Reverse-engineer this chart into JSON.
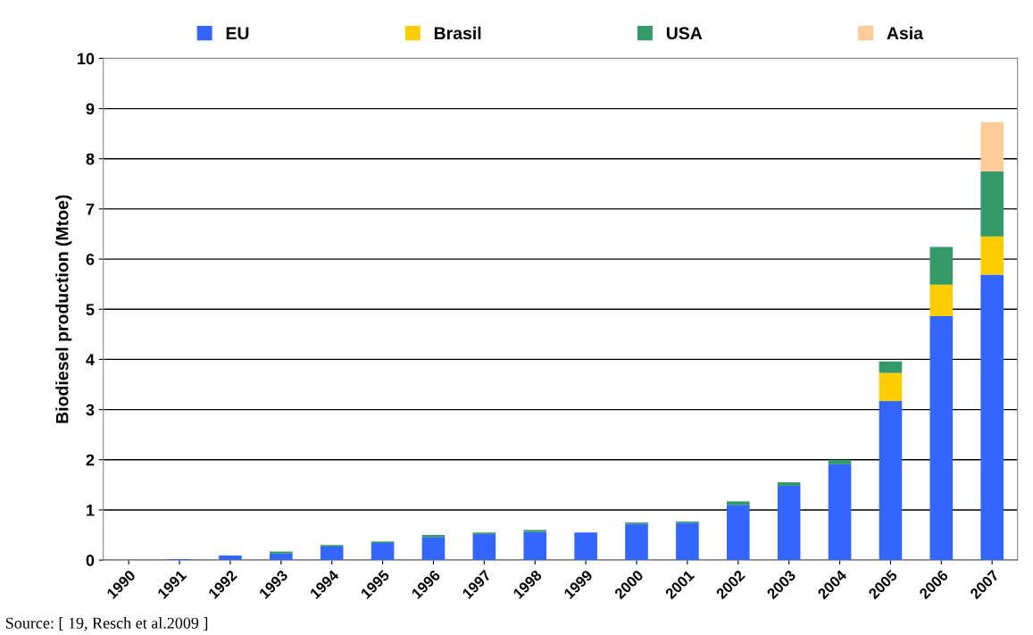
{
  "chart_data": {
    "type": "bar",
    "stacked": true,
    "ylabel": "Biodiesel production (Mtoe)",
    "categories": [
      "1990",
      "1991",
      "1992",
      "1993",
      "1994",
      "1995",
      "1996",
      "1997",
      "1998",
      "1999",
      "2000",
      "2001",
      "2002",
      "2003",
      "2004",
      "2005",
      "2006",
      "2007"
    ],
    "series": [
      {
        "name": "EU",
        "color": "#3366ff",
        "values": [
          0,
          0.02,
          0.09,
          0.13,
          0.27,
          0.34,
          0.46,
          0.52,
          0.56,
          0.55,
          0.72,
          0.74,
          1.1,
          1.48,
          1.91,
          3.17,
          4.86,
          5.69
        ]
      },
      {
        "name": "Brasil",
        "color": "#ffcc00",
        "values": [
          0,
          0,
          0,
          0,
          0,
          0,
          0,
          0,
          0,
          0,
          0,
          0,
          0,
          0,
          0,
          0.56,
          0.63,
          0.76
        ]
      },
      {
        "name": "USA",
        "color": "#339966",
        "values": [
          0,
          0,
          0,
          0.04,
          0.03,
          0.03,
          0.04,
          0.03,
          0.04,
          0,
          0.03,
          0.03,
          0.07,
          0.07,
          0.09,
          0.23,
          0.75,
          1.3
        ]
      },
      {
        "name": "Asia",
        "color": "#ffcc99",
        "values": [
          0,
          0,
          0,
          0,
          0,
          0,
          0,
          0,
          0,
          0,
          0,
          0,
          0,
          0,
          0,
          0,
          0,
          0.98
        ]
      }
    ],
    "ylim": [
      0,
      10
    ],
    "yticks": [
      0,
      1,
      2,
      3,
      4,
      5,
      6,
      7,
      8,
      9,
      10
    ],
    "grid": "y",
    "legend": "top",
    "annotations": [
      "Source: [ 19, Resch et al.2009 ]"
    ]
  }
}
